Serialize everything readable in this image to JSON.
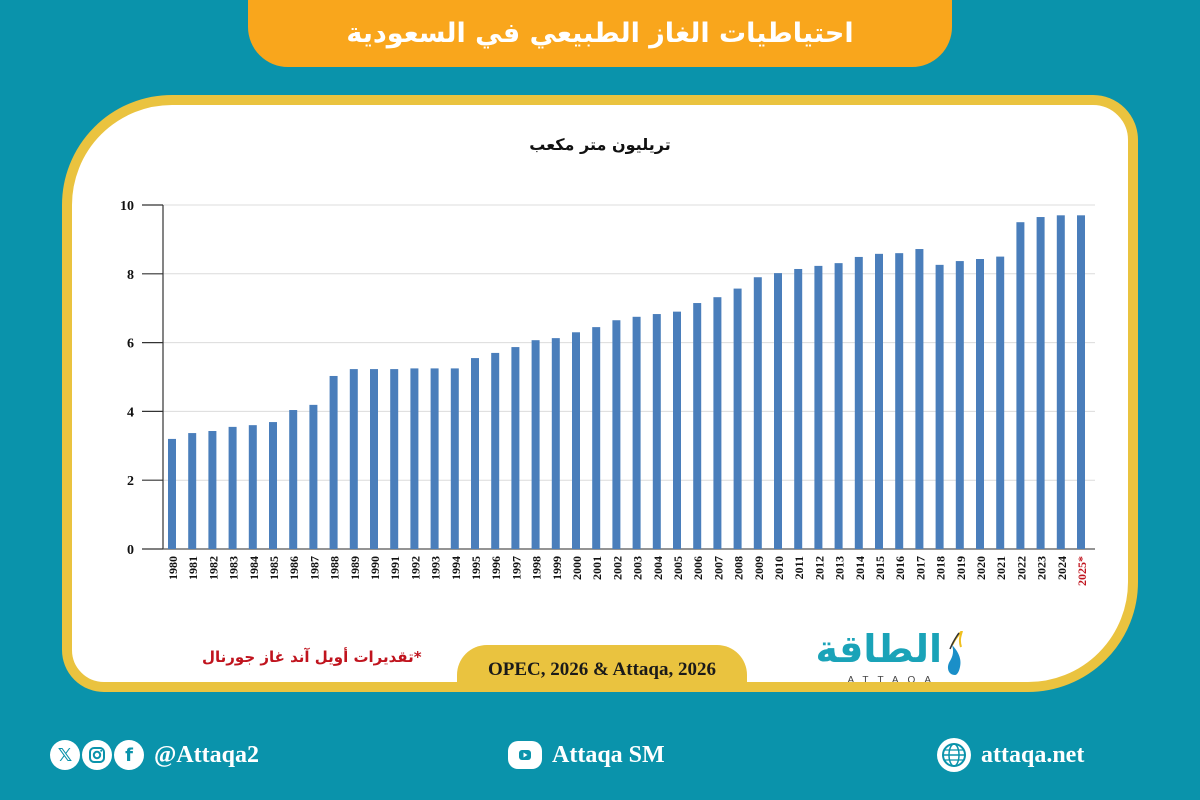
{
  "header": {
    "title": "احتياطيات الغاز الطبيعي في السعودية"
  },
  "chart_data": {
    "type": "bar",
    "title": "احتياطيات الغاز الطبيعي في السعودية",
    "ylabel": "تريليون متر مكعب",
    "xlabel": "",
    "ylim": [
      0,
      10
    ],
    "yticks": [
      0,
      2,
      4,
      6,
      8,
      10
    ],
    "grid": true,
    "bar_color": "#4a7ebb",
    "categories": [
      "1980",
      "1981",
      "1982",
      "1983",
      "1984",
      "1985",
      "1986",
      "1987",
      "1988",
      "1989",
      "1990",
      "1991",
      "1992",
      "1993",
      "1994",
      "1995",
      "1996",
      "1997",
      "1998",
      "1999",
      "2000",
      "2001",
      "2002",
      "2003",
      "2004",
      "2005",
      "2006",
      "2007",
      "2008",
      "2009",
      "2010",
      "2011",
      "2012",
      "2013",
      "2014",
      "2015",
      "2016",
      "2017",
      "2018",
      "2019",
      "2020",
      "2021",
      "2022",
      "2023",
      "2024",
      "2025*"
    ],
    "values": [
      3.2,
      3.37,
      3.43,
      3.55,
      3.6,
      3.69,
      4.04,
      4.19,
      5.03,
      5.23,
      5.23,
      5.23,
      5.25,
      5.25,
      5.25,
      5.55,
      5.7,
      5.87,
      6.07,
      6.13,
      6.3,
      6.45,
      6.65,
      6.75,
      6.83,
      6.9,
      7.15,
      7.32,
      7.57,
      7.9,
      8.02,
      8.14,
      8.23,
      8.31,
      8.49,
      8.58,
      8.6,
      8.72,
      8.26,
      8.37,
      8.43,
      8.5,
      9.5,
      9.65,
      9.7,
      9.7
    ],
    "highlighted_category": "2025*",
    "highlight_color": "#c0141e",
    "footnote": "*تقديرات أويل آند غاز جورنال",
    "source": "OPEC, 2026 & Attaqa, 2026"
  },
  "chart": {
    "unit_label": "تريليون متر مكعب",
    "footnote": "*تقديرات أويل آند غاز جورنال",
    "source": "OPEC, 2026 & Attaqa, 2026"
  },
  "logo": {
    "arabic": "الطاقة",
    "english": "ATTAQA"
  },
  "footer": {
    "social_handle": "@Attaqa2",
    "social_icons": [
      "x-icon",
      "instagram-icon",
      "facebook-icon"
    ],
    "youtube_label": "Attaqa SM",
    "website": "attaqa.net"
  },
  "colors": {
    "background": "#0a93ab",
    "title_bar": "#f9a61c",
    "card_border": "#eac33f",
    "bar": "#4a7ebb",
    "estimate": "#c0141e"
  }
}
